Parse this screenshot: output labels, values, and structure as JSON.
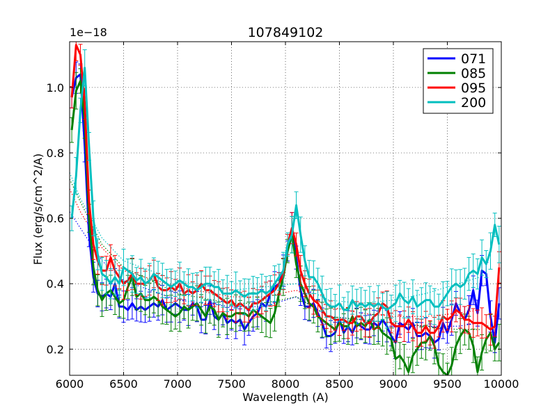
{
  "chart_data": {
    "type": "line",
    "title": "107849102",
    "xlabel": "Wavelength (A)",
    "ylabel": "Flux (erg/s/cm^2/A)",
    "offset_text": "1e−18",
    "xlim": [
      6000,
      10000
    ],
    "ylim": [
      0.12,
      1.14
    ],
    "xticks": [
      6000,
      6500,
      7000,
      7500,
      8000,
      8500,
      9000,
      9500,
      10000
    ],
    "xtick_labels": [
      "6000",
      "6500",
      "7000",
      "7500",
      "8000",
      "8500",
      "9000",
      "9500",
      "10000"
    ],
    "yticks": [
      0.2,
      0.4,
      0.6,
      0.8,
      1.0
    ],
    "ytick_labels": [
      "0.2",
      "0.4",
      "0.6",
      "0.8",
      "1.0"
    ],
    "grid": true,
    "legend_position": "top-right",
    "x": [
      6020,
      6060,
      6100,
      6140,
      6180,
      6220,
      6260,
      6300,
      6340,
      6380,
      6420,
      6460,
      6500,
      6540,
      6580,
      6620,
      6660,
      6700,
      6740,
      6780,
      6820,
      6860,
      6900,
      6940,
      6980,
      7020,
      7060,
      7100,
      7140,
      7180,
      7220,
      7260,
      7300,
      7340,
      7380,
      7420,
      7460,
      7500,
      7540,
      7580,
      7620,
      7660,
      7700,
      7740,
      7780,
      7820,
      7860,
      7900,
      7940,
      7980,
      8020,
      8060,
      8100,
      8140,
      8180,
      8220,
      8260,
      8300,
      8340,
      8380,
      8420,
      8460,
      8500,
      8540,
      8580,
      8620,
      8660,
      8700,
      8740,
      8780,
      8820,
      8860,
      8900,
      8940,
      8980,
      9020,
      9060,
      9100,
      9140,
      9180,
      9220,
      9260,
      9300,
      9340,
      9380,
      9420,
      9460,
      9500,
      9540,
      9580,
      9620,
      9660,
      9700,
      9740,
      9780,
      9820,
      9860,
      9900,
      9940,
      9980
    ],
    "series": [
      {
        "name": "071",
        "color": "#0000ff",
        "error": 0.03,
        "values": [
          0.97,
          1.03,
          1.04,
          0.82,
          0.55,
          0.42,
          0.37,
          0.36,
          0.37,
          0.36,
          0.4,
          0.33,
          0.33,
          0.32,
          0.34,
          0.32,
          0.33,
          0.32,
          0.33,
          0.34,
          0.33,
          0.35,
          0.32,
          0.33,
          0.34,
          0.33,
          0.32,
          0.32,
          0.34,
          0.33,
          0.29,
          0.29,
          0.35,
          0.3,
          0.29,
          0.31,
          0.28,
          0.29,
          0.28,
          0.29,
          0.26,
          0.28,
          0.3,
          0.31,
          0.34,
          0.33,
          0.37,
          0.39,
          0.4,
          0.44,
          0.5,
          0.57,
          0.48,
          0.38,
          0.33,
          0.33,
          0.34,
          0.31,
          0.28,
          0.24,
          0.24,
          0.25,
          0.29,
          0.25,
          0.27,
          0.25,
          0.28,
          0.27,
          0.26,
          0.26,
          0.28,
          0.27,
          0.29,
          0.27,
          0.24,
          0.22,
          0.28,
          0.27,
          0.26,
          0.28,
          0.24,
          0.24,
          0.25,
          0.24,
          0.22,
          0.23,
          0.28,
          0.25,
          0.29,
          0.34,
          0.31,
          0.29,
          0.32,
          0.38,
          0.31,
          0.44,
          0.43,
          0.3,
          0.22,
          0.34
        ]
      },
      {
        "name": "085",
        "color": "#008000",
        "error": 0.035,
        "values": [
          0.87,
          0.99,
          1.02,
          0.9,
          0.6,
          0.45,
          0.38,
          0.35,
          0.37,
          0.38,
          0.36,
          0.34,
          0.35,
          0.39,
          0.42,
          0.36,
          0.37,
          0.35,
          0.35,
          0.36,
          0.35,
          0.33,
          0.32,
          0.31,
          0.3,
          0.31,
          0.33,
          0.32,
          0.33,
          0.34,
          0.32,
          0.3,
          0.33,
          0.32,
          0.29,
          0.31,
          0.3,
          0.3,
          0.31,
          0.31,
          0.31,
          0.3,
          0.32,
          0.31,
          0.3,
          0.29,
          0.28,
          0.31,
          0.37,
          0.42,
          0.5,
          0.55,
          0.46,
          0.4,
          0.37,
          0.34,
          0.33,
          0.3,
          0.29,
          0.28,
          0.27,
          0.26,
          0.28,
          0.27,
          0.27,
          0.3,
          0.27,
          0.28,
          0.27,
          0.29,
          0.26,
          0.27,
          0.25,
          0.24,
          0.23,
          0.17,
          0.18,
          0.16,
          0.13,
          0.18,
          0.2,
          0.22,
          0.22,
          0.24,
          0.21,
          0.15,
          0.13,
          0.12,
          0.15,
          0.21,
          0.24,
          0.26,
          0.25,
          0.21,
          0.13,
          0.19,
          0.23,
          0.25,
          0.2,
          0.22
        ]
      },
      {
        "name": "095",
        "color": "#ff0000",
        "error": 0.03,
        "values": [
          0.97,
          1.13,
          1.1,
          0.95,
          0.65,
          0.52,
          0.47,
          0.44,
          0.44,
          0.48,
          0.44,
          0.42,
          0.4,
          0.41,
          0.43,
          0.4,
          0.4,
          0.4,
          0.41,
          0.43,
          0.39,
          0.38,
          0.38,
          0.39,
          0.38,
          0.4,
          0.37,
          0.38,
          0.37,
          0.38,
          0.4,
          0.38,
          0.38,
          0.37,
          0.36,
          0.35,
          0.34,
          0.35,
          0.33,
          0.34,
          0.33,
          0.32,
          0.34,
          0.34,
          0.35,
          0.36,
          0.37,
          0.38,
          0.4,
          0.43,
          0.52,
          0.57,
          0.52,
          0.44,
          0.4,
          0.37,
          0.35,
          0.34,
          0.32,
          0.3,
          0.3,
          0.29,
          0.29,
          0.29,
          0.28,
          0.28,
          0.3,
          0.3,
          0.28,
          0.28,
          0.3,
          0.31,
          0.34,
          0.33,
          0.28,
          0.27,
          0.27,
          0.27,
          0.29,
          0.27,
          0.25,
          0.25,
          0.27,
          0.25,
          0.25,
          0.27,
          0.3,
          0.29,
          0.3,
          0.32,
          0.31,
          0.29,
          0.29,
          0.28,
          0.28,
          0.28,
          0.27,
          0.26,
          0.27,
          0.45
        ]
      },
      {
        "name": "200",
        "color": "#00bfbf",
        "error": 0.035,
        "values": [
          0.6,
          0.73,
          0.93,
          1.06,
          0.82,
          0.6,
          0.49,
          0.43,
          0.42,
          0.4,
          0.42,
          0.4,
          0.45,
          0.44,
          0.43,
          0.41,
          0.42,
          0.4,
          0.41,
          0.43,
          0.42,
          0.41,
          0.4,
          0.39,
          0.4,
          0.41,
          0.4,
          0.39,
          0.39,
          0.38,
          0.39,
          0.4,
          0.4,
          0.39,
          0.39,
          0.37,
          0.37,
          0.37,
          0.38,
          0.37,
          0.36,
          0.37,
          0.37,
          0.37,
          0.38,
          0.37,
          0.38,
          0.4,
          0.42,
          0.44,
          0.52,
          0.55,
          0.64,
          0.55,
          0.47,
          0.42,
          0.42,
          0.4,
          0.37,
          0.34,
          0.33,
          0.33,
          0.34,
          0.32,
          0.32,
          0.35,
          0.33,
          0.34,
          0.33,
          0.34,
          0.33,
          0.34,
          0.33,
          0.32,
          0.33,
          0.34,
          0.37,
          0.35,
          0.34,
          0.36,
          0.33,
          0.34,
          0.35,
          0.35,
          0.33,
          0.33,
          0.35,
          0.37,
          0.39,
          0.4,
          0.39,
          0.4,
          0.43,
          0.44,
          0.43,
          0.48,
          0.46,
          0.5,
          0.58,
          0.52
        ]
      }
    ],
    "continuum": {
      "x": [
        6000,
        6100,
        6300,
        6500,
        7000,
        7500,
        7800,
        8100,
        8400,
        8700,
        9000,
        9300,
        9600,
        9800
      ],
      "series": [
        {
          "name": "071",
          "values": [
            0.62,
            0.57,
            0.47,
            0.41,
            0.35,
            0.33,
            0.33,
            0.36,
            0.3,
            0.29,
            0.28,
            0.27,
            0.27,
            0.28
          ]
        },
        {
          "name": "085",
          "values": [
            0.72,
            0.65,
            0.52,
            0.45,
            0.37,
            0.34,
            0.34,
            0.36,
            0.3,
            0.29,
            0.28,
            0.27,
            0.26,
            0.26
          ]
        },
        {
          "name": "095",
          "values": [
            0.69,
            0.62,
            0.51,
            0.44,
            0.39,
            0.36,
            0.36,
            0.38,
            0.33,
            0.31,
            0.3,
            0.3,
            0.31,
            0.32
          ]
        },
        {
          "name": "200",
          "values": [
            0.74,
            0.66,
            0.54,
            0.47,
            0.41,
            0.38,
            0.39,
            0.4,
            0.35,
            0.34,
            0.35,
            0.37,
            0.4,
            0.42
          ]
        }
      ]
    }
  }
}
